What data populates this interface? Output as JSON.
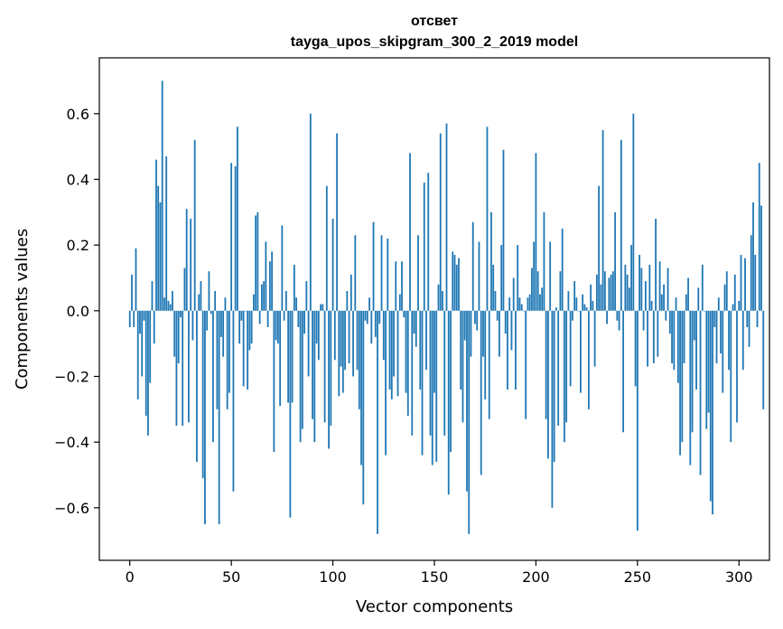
{
  "chart_data": {
    "type": "bar",
    "title": "отсвет",
    "subtitle": "tayga_upos_skipgram_300_2_2019 model",
    "xlabel": "Vector components",
    "ylabel": "Components values",
    "xlim": [
      -15,
      315
    ],
    "ylim": [
      -0.76,
      0.77
    ],
    "xticks": [
      0,
      50,
      100,
      150,
      200,
      250,
      300
    ],
    "yticks": [
      -0.6,
      -0.4,
      -0.2,
      0.0,
      0.2,
      0.4,
      0.6
    ],
    "xtick_labels": [
      "0",
      "50",
      "100",
      "150",
      "200",
      "250",
      "300"
    ],
    "ytick_labels": [
      "−0.6",
      "−0.4",
      "−0.2",
      "0.0",
      "0.2",
      "0.4",
      "0.6"
    ],
    "bar_color": "#1f77b4",
    "values": [
      -0.05,
      0.11,
      -0.05,
      0.19,
      -0.27,
      -0.07,
      -0.2,
      -0.03,
      -0.32,
      -0.38,
      -0.22,
      0.09,
      -0.1,
      0.46,
      0.38,
      0.33,
      0.7,
      0.04,
      0.47,
      0.03,
      0.02,
      0.06,
      -0.14,
      -0.35,
      -0.16,
      -0.02,
      -0.35,
      0.13,
      0.31,
      -0.34,
      0.28,
      -0.09,
      0.52,
      -0.46,
      0.05,
      0.09,
      -0.51,
      -0.65,
      -0.06,
      0.12,
      -0.01,
      -0.4,
      0.06,
      -0.3,
      -0.65,
      -0.08,
      -0.14,
      0.04,
      -0.3,
      -0.25,
      0.45,
      -0.55,
      0.44,
      0.56,
      -0.1,
      -0.03,
      -0.23,
      0.0,
      -0.24,
      -0.12,
      -0.1,
      0.05,
      0.29,
      0.3,
      -0.04,
      0.08,
      0.09,
      0.21,
      -0.05,
      0.15,
      0.18,
      -0.43,
      -0.09,
      -0.1,
      -0.29,
      0.26,
      -0.03,
      0.06,
      -0.28,
      -0.63,
      -0.28,
      0.14,
      0.04,
      -0.05,
      -0.4,
      -0.36,
      -0.07,
      0.09,
      -0.2,
      0.6,
      -0.33,
      -0.4,
      -0.1,
      -0.15,
      0.02,
      0.02,
      -0.34,
      0.38,
      -0.42,
      -0.35,
      0.28,
      -0.15,
      0.54,
      -0.26,
      -0.17,
      -0.25,
      -0.18,
      0.06,
      -0.16,
      0.11,
      -0.2,
      0.23,
      -0.18,
      -0.3,
      -0.47,
      -0.59,
      -0.03,
      -0.04,
      0.04,
      -0.1,
      0.27,
      -0.08,
      -0.68,
      -0.04,
      0.23,
      -0.15,
      -0.44,
      0.22,
      -0.24,
      -0.27,
      -0.2,
      0.15,
      -0.26,
      0.05,
      0.15,
      -0.02,
      -0.25,
      -0.32,
      0.48,
      -0.38,
      -0.07,
      -0.11,
      0.23,
      -0.24,
      -0.44,
      0.39,
      -0.18,
      0.42,
      -0.38,
      -0.47,
      -0.25,
      -0.46,
      0.08,
      0.54,
      0.06,
      -0.38,
      0.57,
      -0.56,
      -0.43,
      0.18,
      0.17,
      0.14,
      0.16,
      -0.24,
      -0.34,
      -0.09,
      -0.55,
      -0.68,
      -0.14,
      0.27,
      -0.04,
      -0.06,
      0.21,
      -0.5,
      -0.14,
      -0.27,
      0.56,
      -0.33,
      0.3,
      0.14,
      0.06,
      -0.03,
      -0.14,
      0.2,
      0.49,
      -0.07,
      -0.24,
      0.04,
      -0.12,
      0.1,
      -0.24,
      0.2,
      0.04,
      0.02,
      0.0,
      -0.33,
      0.04,
      0.05,
      0.13,
      0.21,
      0.48,
      0.12,
      0.05,
      0.07,
      0.3,
      -0.33,
      -0.45,
      0.21,
      -0.6,
      -0.46,
      0.01,
      -0.35,
      0.12,
      0.25,
      -0.4,
      -0.34,
      0.06,
      -0.23,
      -0.03,
      0.09,
      0.04,
      0.0,
      -0.25,
      0.05,
      0.02,
      0.01,
      -0.3,
      0.08,
      0.03,
      -0.17,
      0.11,
      0.38,
      0.08,
      0.55,
      0.12,
      -0.04,
      0.1,
      0.11,
      0.12,
      0.3,
      -0.03,
      -0.06,
      0.52,
      -0.37,
      0.14,
      0.11,
      0.07,
      0.2,
      0.6,
      -0.23,
      -0.67,
      0.17,
      0.13,
      -0.06,
      0.09,
      -0.17,
      0.14,
      0.03,
      -0.16,
      0.28,
      -0.14,
      0.15,
      0.05,
      0.08,
      -0.03,
      0.13,
      -0.07,
      -0.16,
      -0.18,
      0.04,
      -0.22,
      -0.44,
      -0.4,
      -0.16,
      0.05,
      0.1,
      -0.47,
      -0.37,
      -0.09,
      -0.24,
      0.07,
      -0.5,
      0.14,
      0.0,
      -0.36,
      -0.31,
      -0.58,
      -0.62,
      -0.05,
      -0.16,
      0.04,
      -0.13,
      -0.25,
      0.08,
      0.12,
      -0.18,
      -0.4,
      0.02,
      0.11,
      -0.34,
      0.03,
      0.17,
      -0.18,
      0.16,
      -0.05,
      -0.11,
      0.23,
      0.33,
      0.17,
      -0.05,
      0.45,
      0.32,
      -0.3
    ]
  }
}
